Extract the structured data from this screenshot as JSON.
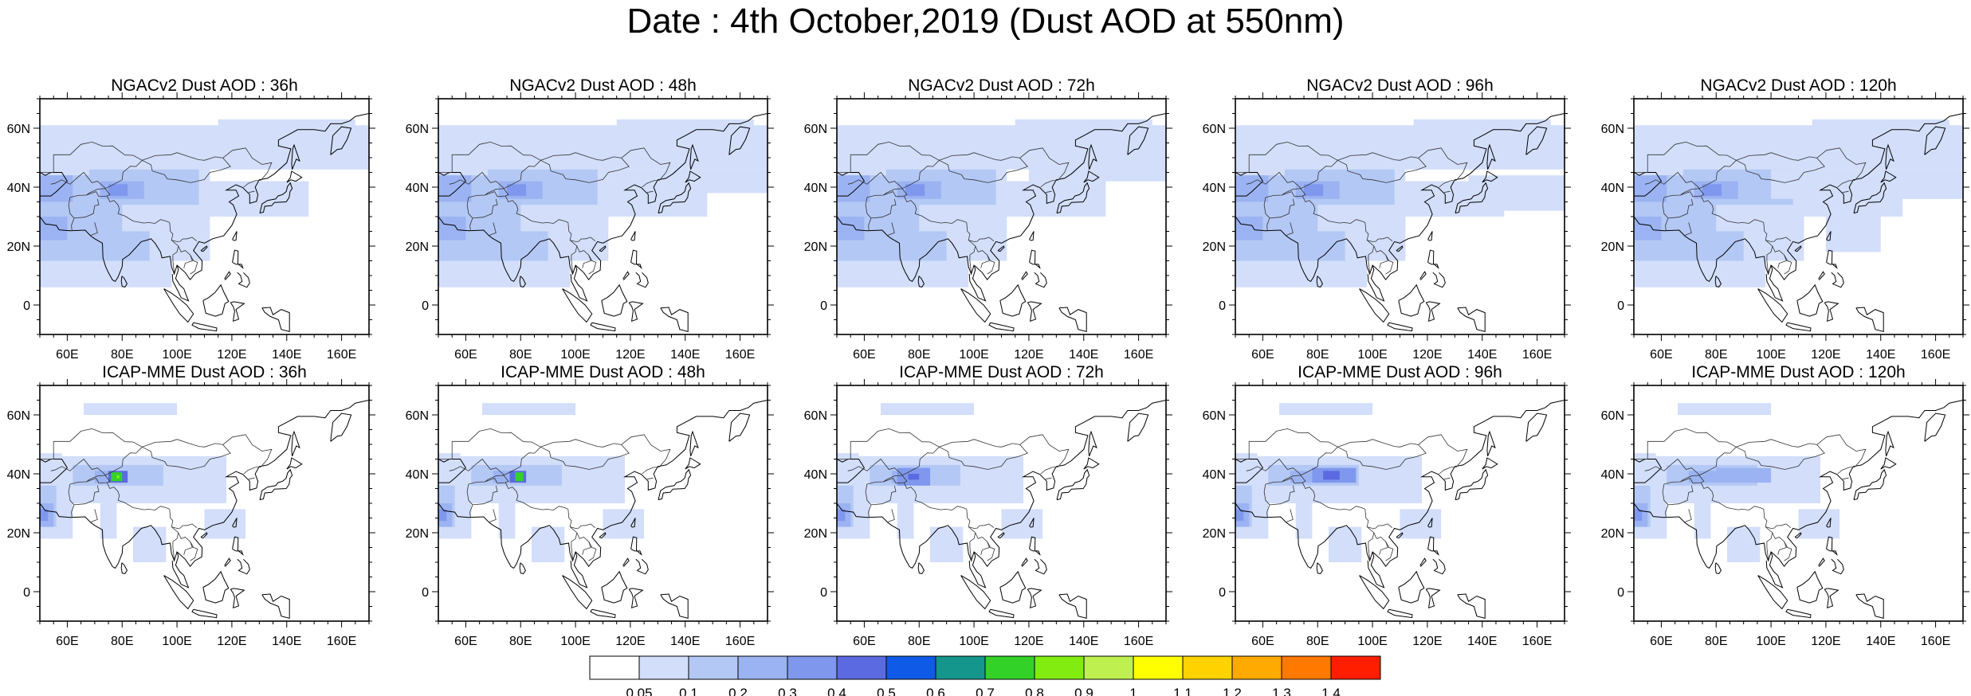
{
  "title": "Date : 4th October,2019 (Dust AOD at 550nm)",
  "panels": [
    {
      "title": "NGACv2 Dust AOD : 36h",
      "model": "NGACv2",
      "lead": "36h"
    },
    {
      "title": "NGACv2 Dust AOD : 48h",
      "model": "NGACv2",
      "lead": "48h"
    },
    {
      "title": "NGACv2 Dust AOD : 72h",
      "model": "NGACv2",
      "lead": "72h"
    },
    {
      "title": "NGACv2 Dust AOD : 96h",
      "model": "NGACv2",
      "lead": "96h"
    },
    {
      "title": "NGACv2 Dust AOD : 120h",
      "model": "NGACv2",
      "lead": "120h"
    },
    {
      "title": "ICAP-MME Dust AOD : 36h",
      "model": "ICAP-MME",
      "lead": "36h"
    },
    {
      "title": "ICAP-MME Dust AOD : 48h",
      "model": "ICAP-MME",
      "lead": "48h"
    },
    {
      "title": "ICAP-MME Dust AOD : 72h",
      "model": "ICAP-MME",
      "lead": "72h"
    },
    {
      "title": "ICAP-MME Dust AOD : 96h",
      "model": "ICAP-MME",
      "lead": "96h"
    },
    {
      "title": "ICAP-MME Dust AOD : 120h",
      "model": "ICAP-MME",
      "lead": "120h"
    }
  ],
  "map_extent": {
    "lon_min": 50,
    "lon_max": 170,
    "lat_min": -10,
    "lat_max": 70
  },
  "lon_ticks": [
    {
      "value": 60,
      "label": "60E"
    },
    {
      "value": 80,
      "label": "80E"
    },
    {
      "value": 100,
      "label": "100E"
    },
    {
      "value": 120,
      "label": "120E"
    },
    {
      "value": 140,
      "label": "140E"
    },
    {
      "value": 160,
      "label": "160E"
    }
  ],
  "lat_ticks": [
    {
      "value": 0,
      "label": "0"
    },
    {
      "value": 20,
      "label": "20N"
    },
    {
      "value": 40,
      "label": "40N"
    },
    {
      "value": 60,
      "label": "60N"
    }
  ],
  "colorbar": {
    "labels": [
      "0.05",
      "0.1",
      "0.2",
      "0.3",
      "0.4",
      "0.5",
      "0.6",
      "0.7",
      "0.8",
      "0.9",
      "1",
      "1.1",
      "1.2",
      "1.3",
      "1.4"
    ],
    "colors": [
      "#ffffff",
      "#d2defa",
      "#b4c8f5",
      "#9bb3f2",
      "#7f98ed",
      "#5b6ae0",
      "#0f5ae6",
      "#14968c",
      "#32d228",
      "#82eb0f",
      "#bef050",
      "#ffff00",
      "#ffd200",
      "#ffaa00",
      "#ff7800",
      "#ff1e00"
    ]
  },
  "map_colors": {
    "land": "#ffffff",
    "coast": "#000000",
    "boundary": "#333333"
  }
}
